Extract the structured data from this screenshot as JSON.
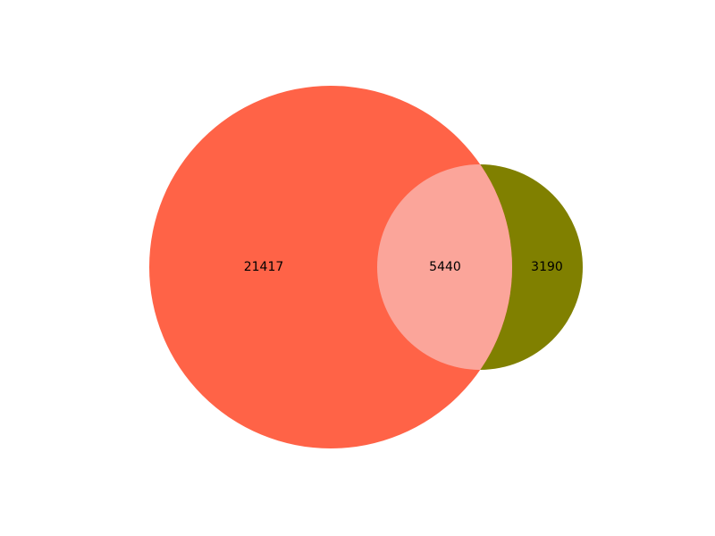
{
  "chart_data": {
    "type": "venn",
    "title": "",
    "sets": [
      {
        "name": "",
        "only_count": 21417,
        "color": "#ff6347"
      },
      {
        "name": "",
        "only_count": 3190,
        "color": "#808000"
      }
    ],
    "intersection": {
      "count": 5440,
      "color": "#fba59a"
    },
    "labels": {
      "set_a_only": "21417",
      "intersection": "5440",
      "set_b_only": "3190"
    },
    "legend": "none"
  }
}
